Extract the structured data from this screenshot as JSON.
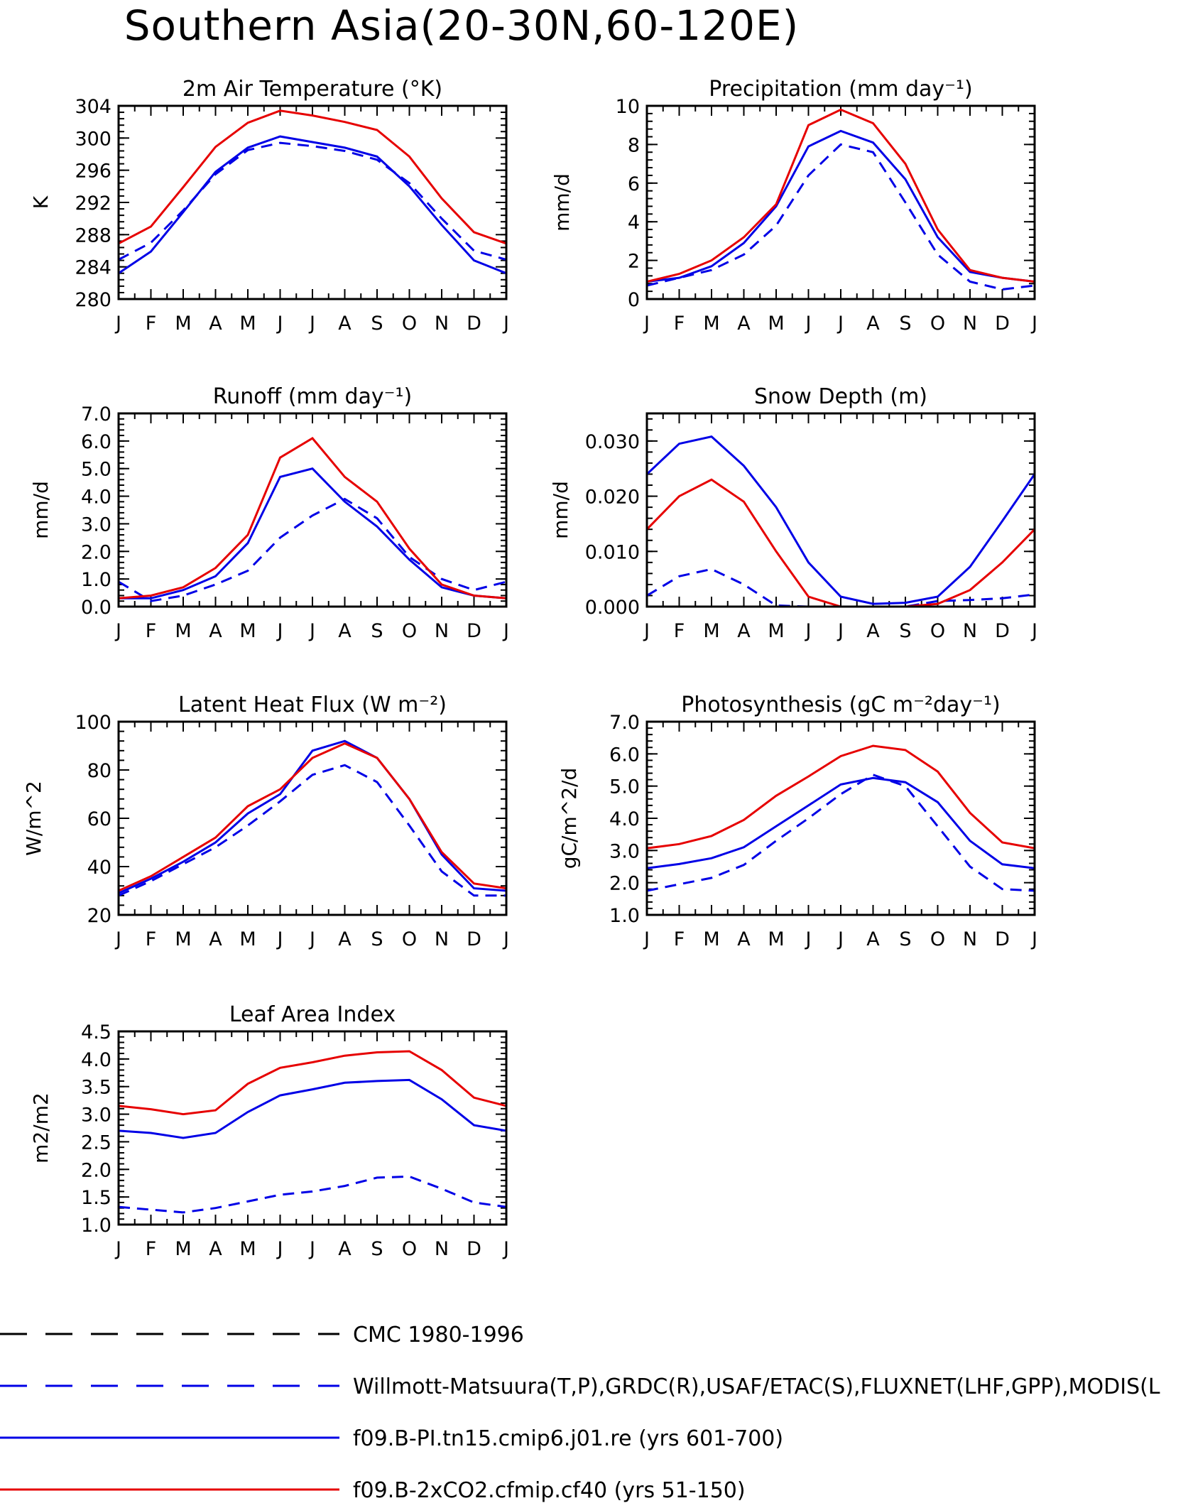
{
  "title": "Southern Asia(20-30N,60-120E)",
  "months": [
    "J",
    "F",
    "M",
    "A",
    "M",
    "J",
    "J",
    "A",
    "S",
    "O",
    "N",
    "D",
    "J"
  ],
  "legend": [
    {
      "label": "CMC 1980-1996",
      "color": "#000000",
      "dash": true
    },
    {
      "label": "Willmott-Matsuura(T,P),GRDC(R),USAF/ETAC(S),FLUXNET(LHF,GPP),MODIS(L",
      "color": "#0000e6",
      "dash": true
    },
    {
      "label": "f09.B-PI.tn15.cmip6.j01.re (yrs 601-700)",
      "color": "#0000e6",
      "dash": false
    },
    {
      "label": "f09.B-2xCO2.cfmip.cf40 (yrs 51-150)",
      "color": "#e60000",
      "dash": false
    }
  ],
  "chart_data": [
    {
      "type": "line",
      "title": "2m Air Temperature (°K)",
      "ylabel": "K",
      "ylim": [
        280,
        304
      ],
      "yticks": [
        280,
        284,
        288,
        292,
        296,
        300,
        304
      ],
      "ytick_labels": [
        "280",
        "284",
        "288",
        "292",
        "296",
        "300",
        "304"
      ],
      "series": [
        {
          "style": "obs",
          "values": [
            284.9,
            287.0,
            291.0,
            295.5,
            298.5,
            299.4,
            299.0,
            298.4,
            297.3,
            294.4,
            290.0,
            286.0,
            284.9
          ]
        },
        {
          "style": "ctrl",
          "values": [
            283.2,
            285.9,
            290.8,
            295.8,
            298.8,
            300.2,
            299.5,
            298.8,
            297.7,
            294.0,
            289.2,
            284.8,
            283.2
          ]
        },
        {
          "style": "exp",
          "values": [
            286.9,
            289.0,
            293.9,
            298.9,
            301.9,
            303.4,
            302.8,
            302.0,
            301.0,
            297.7,
            292.5,
            288.3,
            286.9
          ]
        }
      ]
    },
    {
      "type": "line",
      "title": "Precipitation (mm day⁻¹)",
      "ylabel": "mm/d",
      "ylim": [
        0,
        10
      ],
      "yticks": [
        0,
        2,
        4,
        6,
        8,
        10
      ],
      "ytick_labels": [
        "0",
        "2",
        "4",
        "6",
        "8",
        "10"
      ],
      "series": [
        {
          "style": "obs",
          "values": [
            0.7,
            1.1,
            1.5,
            2.3,
            3.8,
            6.4,
            8.0,
            7.6,
            5.0,
            2.3,
            0.9,
            0.5,
            0.7
          ]
        },
        {
          "style": "ctrl",
          "values": [
            0.9,
            1.1,
            1.7,
            2.9,
            4.8,
            7.9,
            8.7,
            8.1,
            6.2,
            3.2,
            1.4,
            1.1,
            0.9
          ]
        },
        {
          "style": "exp",
          "values": [
            0.9,
            1.3,
            2.0,
            3.2,
            4.9,
            9.0,
            9.8,
            9.1,
            7.0,
            3.6,
            1.5,
            1.1,
            0.9
          ]
        }
      ]
    },
    {
      "type": "line",
      "title": "Runoff (mm day⁻¹)",
      "ylabel": "mm/d",
      "ylim": [
        0,
        7
      ],
      "yticks": [
        0,
        1,
        2,
        3,
        4,
        5,
        6,
        7
      ],
      "ytick_labels": [
        "0.0",
        "1.0",
        "2.0",
        "3.0",
        "4.0",
        "5.0",
        "6.0",
        "7.0"
      ],
      "series": [
        {
          "style": "obs",
          "values": [
            0.9,
            0.2,
            0.4,
            0.8,
            1.3,
            2.5,
            3.3,
            3.9,
            3.2,
            1.8,
            1.0,
            0.6,
            0.9
          ]
        },
        {
          "style": "ctrl",
          "values": [
            0.3,
            0.3,
            0.6,
            1.1,
            2.3,
            4.7,
            5.0,
            3.8,
            2.9,
            1.7,
            0.7,
            0.4,
            0.3
          ]
        },
        {
          "style": "exp",
          "values": [
            0.3,
            0.4,
            0.7,
            1.4,
            2.6,
            5.4,
            6.1,
            4.7,
            3.8,
            2.1,
            0.8,
            0.4,
            0.3
          ]
        }
      ]
    },
    {
      "type": "line",
      "title": "Snow Depth (m)",
      "ylabel": "mm/d",
      "ylim": [
        0,
        0.035
      ],
      "yticks": [
        0,
        0.01,
        0.02,
        0.03
      ],
      "ytick_labels": [
        "0.000",
        "0.010",
        "0.020",
        "0.030"
      ],
      "series": [
        {
          "style": "cmc",
          "values": [
            0,
            0,
            0,
            0,
            0,
            0,
            0,
            0,
            0,
            0,
            0,
            0,
            0
          ]
        },
        {
          "style": "obs",
          "values": [
            0.002,
            0.0055,
            0.0068,
            0.004,
            0.0002,
            0,
            0,
            0,
            0,
            0.001,
            0.0012,
            0.0015,
            0.0022
          ]
        },
        {
          "style": "ctrl",
          "values": [
            0.024,
            0.0295,
            0.0308,
            0.0255,
            0.018,
            0.008,
            0.0018,
            0.0005,
            0.0007,
            0.0018,
            0.0072,
            0.0155,
            0.024
          ]
        },
        {
          "style": "exp",
          "values": [
            0.014,
            0.02,
            0.023,
            0.019,
            0.01,
            0.0018,
            0,
            0,
            0,
            0.0005,
            0.003,
            0.008,
            0.014
          ]
        }
      ]
    },
    {
      "type": "line",
      "title": "Latent Heat Flux (W m⁻²)",
      "ylabel": "W/m^2",
      "ylim": [
        20,
        100
      ],
      "yticks": [
        20,
        40,
        60,
        80,
        100
      ],
      "ytick_labels": [
        "20",
        "40",
        "60",
        "80",
        "100"
      ],
      "series": [
        {
          "style": "obs",
          "values": [
            28,
            34,
            41,
            48,
            57,
            67,
            78,
            82,
            75,
            57,
            38,
            28,
            28
          ]
        },
        {
          "style": "ctrl",
          "values": [
            29,
            35,
            42,
            50,
            62,
            70,
            88,
            92,
            85,
            68,
            45,
            31,
            30
          ]
        },
        {
          "style": "exp",
          "values": [
            30,
            36,
            44,
            52,
            65,
            72,
            85,
            91,
            85,
            68,
            46,
            33,
            31
          ]
        }
      ]
    },
    {
      "type": "line",
      "title": "Photosynthesis (gC m⁻²day⁻¹)",
      "ylabel": "gC/m^2/d",
      "ylim": [
        1,
        7
      ],
      "yticks": [
        1,
        2,
        3,
        4,
        5,
        6,
        7
      ],
      "ytick_labels": [
        "1.0",
        "2.0",
        "3.0",
        "4.0",
        "5.0",
        "6.0",
        "7.0"
      ],
      "series": [
        {
          "style": "obs",
          "values": [
            1.75,
            1.95,
            2.15,
            2.55,
            3.3,
            4.0,
            4.75,
            5.35,
            5.0,
            3.75,
            2.5,
            1.8,
            1.75
          ]
        },
        {
          "style": "ctrl",
          "values": [
            2.45,
            2.58,
            2.76,
            3.1,
            3.75,
            4.4,
            5.05,
            5.25,
            5.12,
            4.5,
            3.3,
            2.57,
            2.45
          ]
        },
        {
          "style": "exp",
          "values": [
            3.07,
            3.2,
            3.45,
            3.95,
            4.7,
            5.3,
            5.93,
            6.25,
            6.12,
            5.45,
            4.17,
            3.25,
            3.07
          ]
        }
      ]
    },
    {
      "type": "line",
      "title": "Leaf Area Index",
      "ylabel": "m2/m2",
      "ylim": [
        1,
        4.5
      ],
      "yticks": [
        1,
        1.5,
        2,
        2.5,
        3,
        3.5,
        4,
        4.5
      ],
      "ytick_labels": [
        "1.0",
        "1.5",
        "2.0",
        "2.5",
        "3.0",
        "3.5",
        "4.0",
        "4.5"
      ],
      "series": [
        {
          "style": "obs",
          "values": [
            1.32,
            1.27,
            1.22,
            1.3,
            1.42,
            1.54,
            1.6,
            1.7,
            1.85,
            1.87,
            1.65,
            1.4,
            1.32
          ]
        },
        {
          "style": "ctrl",
          "values": [
            2.7,
            2.66,
            2.57,
            2.66,
            3.04,
            3.34,
            3.45,
            3.57,
            3.6,
            3.62,
            3.27,
            2.8,
            2.7
          ]
        },
        {
          "style": "exp",
          "values": [
            3.15,
            3.09,
            3.0,
            3.07,
            3.55,
            3.84,
            3.94,
            4.06,
            4.12,
            4.14,
            3.8,
            3.3,
            3.15
          ]
        }
      ]
    }
  ]
}
